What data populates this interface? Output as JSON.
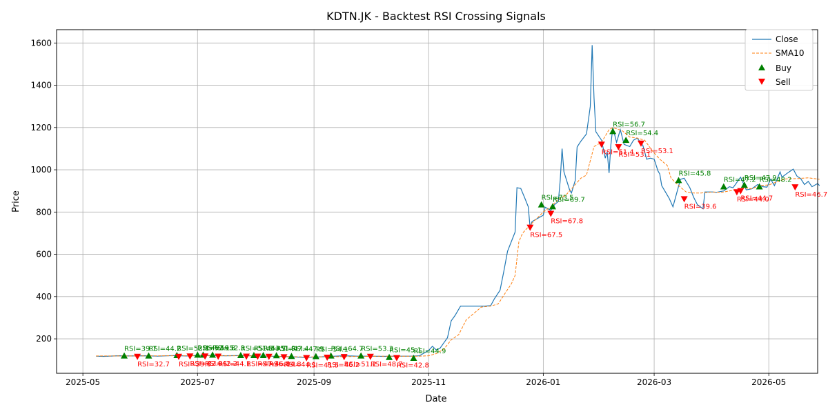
{
  "chart_data": {
    "type": "line",
    "title": "KDTN.JK - Backtest RSI Crossing Signals",
    "xlabel": "Date",
    "ylabel": "Price",
    "xlim": [
      "2025-04-17",
      "2026-05-27"
    ],
    "ylim": [
      37,
      1663
    ],
    "x_ticks": [
      {
        "date": "2025-05-01",
        "label": "2025-05"
      },
      {
        "date": "2025-07-01",
        "label": "2025-07"
      },
      {
        "date": "2025-09-01",
        "label": "2025-09"
      },
      {
        "date": "2025-11-01",
        "label": "2025-11"
      },
      {
        "date": "2026-01-01",
        "label": "2026-01"
      },
      {
        "date": "2026-03-01",
        "label": "2026-03"
      },
      {
        "date": "2026-05-01",
        "label": "2026-05"
      }
    ],
    "y_ticks": [
      200,
      400,
      600,
      800,
      1000,
      1200,
      1400,
      1600
    ],
    "grid": true,
    "legend_position": "top-right",
    "legend": [
      "Close",
      "SMA10",
      "Buy",
      "Sell"
    ],
    "colors": {
      "close": "#1f77b4",
      "sma": "#ff7f0e",
      "buy": "#008000",
      "sell": "#ff0000",
      "grid": "#b0b0b0"
    },
    "series": [
      {
        "name": "Close",
        "style": "solid",
        "points": [
          [
            "2025-05-08",
            118
          ],
          [
            "2025-05-12",
            117
          ],
          [
            "2025-05-20",
            120
          ],
          [
            "2025-05-26",
            119
          ],
          [
            "2025-06-03",
            120
          ],
          [
            "2025-06-10",
            118
          ],
          [
            "2025-06-18",
            121
          ],
          [
            "2025-06-25",
            119
          ],
          [
            "2025-07-02",
            122
          ],
          [
            "2025-07-09",
            121
          ],
          [
            "2025-07-16",
            120
          ],
          [
            "2025-07-23",
            121
          ],
          [
            "2025-07-30",
            120
          ],
          [
            "2025-08-06",
            118
          ],
          [
            "2025-08-13",
            117
          ],
          [
            "2025-08-20",
            115
          ],
          [
            "2025-08-27",
            112
          ],
          [
            "2025-09-03",
            114
          ],
          [
            "2025-09-10",
            117
          ],
          [
            "2025-09-17",
            120
          ],
          [
            "2025-09-24",
            118
          ],
          [
            "2025-10-01",
            118
          ],
          [
            "2025-10-08",
            117
          ],
          [
            "2025-10-15",
            118
          ],
          [
            "2025-10-22",
            118
          ],
          [
            "2025-10-27",
            120
          ],
          [
            "2025-11-01",
            145
          ],
          [
            "2025-11-03",
            165
          ],
          [
            "2025-11-05",
            148
          ],
          [
            "2025-11-07",
            155
          ],
          [
            "2025-11-09",
            180
          ],
          [
            "2025-11-11",
            205
          ],
          [
            "2025-11-13",
            285
          ],
          [
            "2025-11-15",
            310
          ],
          [
            "2025-11-18",
            355
          ],
          [
            "2025-11-25",
            355
          ],
          [
            "2025-12-01",
            355
          ],
          [
            "2025-12-04",
            357
          ],
          [
            "2025-12-06",
            390
          ],
          [
            "2025-12-09",
            430
          ],
          [
            "2025-12-11",
            520
          ],
          [
            "2025-12-13",
            615
          ],
          [
            "2025-12-17",
            705
          ],
          [
            "2025-12-18",
            915
          ],
          [
            "2025-12-20",
            912
          ],
          [
            "2025-12-22",
            870
          ],
          [
            "2025-12-24",
            825
          ],
          [
            "2025-12-25",
            725
          ],
          [
            "2025-12-26",
            755
          ],
          [
            "2025-12-29",
            770
          ],
          [
            "2026-01-01",
            785
          ],
          [
            "2026-01-02",
            823
          ],
          [
            "2026-01-05",
            808
          ],
          [
            "2026-01-07",
            835
          ],
          [
            "2026-01-09",
            850
          ],
          [
            "2026-01-10",
            950
          ],
          [
            "2026-01-11",
            1100
          ],
          [
            "2026-01-12",
            990
          ],
          [
            "2026-01-15",
            905
          ],
          [
            "2026-01-16",
            890
          ],
          [
            "2026-01-18",
            950
          ],
          [
            "2026-01-19",
            1108
          ],
          [
            "2026-01-21",
            1135
          ],
          [
            "2026-01-24",
            1170
          ],
          [
            "2026-01-26",
            1300
          ],
          [
            "2026-01-27",
            1590
          ],
          [
            "2026-01-28",
            1340
          ],
          [
            "2026-01-29",
            1180
          ],
          [
            "2026-02-01",
            1140
          ],
          [
            "2026-02-03",
            1055
          ],
          [
            "2026-02-04",
            1085
          ],
          [
            "2026-02-05",
            985
          ],
          [
            "2026-02-06",
            1120
          ],
          [
            "2026-02-07",
            1200
          ],
          [
            "2026-02-09",
            1130
          ],
          [
            "2026-02-11",
            1190
          ],
          [
            "2026-02-13",
            1120
          ],
          [
            "2026-02-16",
            1110
          ],
          [
            "2026-02-18",
            1140
          ],
          [
            "2026-02-20",
            1150
          ],
          [
            "2026-02-23",
            1115
          ],
          [
            "2026-02-25",
            1050
          ],
          [
            "2026-02-27",
            1055
          ],
          [
            "2026-03-01",
            1050
          ],
          [
            "2026-03-03",
            995
          ],
          [
            "2026-03-04",
            980
          ],
          [
            "2026-03-05",
            925
          ],
          [
            "2026-03-09",
            865
          ],
          [
            "2026-03-11",
            825
          ],
          [
            "2026-03-15",
            955
          ],
          [
            "2026-03-17",
            960
          ],
          [
            "2026-03-20",
            915
          ],
          [
            "2026-03-22",
            870
          ],
          [
            "2026-03-24",
            835
          ],
          [
            "2026-03-27",
            815
          ],
          [
            "2026-03-28",
            895
          ],
          [
            "2026-04-01",
            895
          ],
          [
            "2026-04-03",
            893
          ],
          [
            "2026-04-07",
            900
          ],
          [
            "2026-04-10",
            920
          ],
          [
            "2026-04-12",
            915
          ],
          [
            "2026-04-16",
            965
          ],
          [
            "2026-04-19",
            905
          ],
          [
            "2026-04-22",
            910
          ],
          [
            "2026-04-25",
            930
          ],
          [
            "2026-04-28",
            920
          ],
          [
            "2026-04-30",
            918
          ],
          [
            "2026-05-02",
            955
          ],
          [
            "2026-05-04",
            925
          ],
          [
            "2026-05-07",
            990
          ],
          [
            "2026-05-08",
            965
          ],
          [
            "2026-05-11",
            985
          ],
          [
            "2026-05-14",
            1003
          ],
          [
            "2026-05-16",
            970
          ],
          [
            "2026-05-18",
            958
          ],
          [
            "2026-05-20",
            930
          ],
          [
            "2026-05-22",
            945
          ],
          [
            "2026-05-24",
            920
          ],
          [
            "2026-05-27",
            935
          ],
          [
            "2026-05-28",
            925
          ]
        ]
      },
      {
        "name": "SMA10",
        "style": "dashed",
        "points": [
          [
            "2025-05-08",
            119
          ],
          [
            "2025-05-26",
            119
          ],
          [
            "2025-06-18",
            120
          ],
          [
            "2025-07-16",
            120
          ],
          [
            "2025-08-06",
            119
          ],
          [
            "2025-08-27",
            114
          ],
          [
            "2025-09-17",
            116
          ],
          [
            "2025-10-08",
            118
          ],
          [
            "2025-10-27",
            118
          ],
          [
            "2025-11-01",
            120
          ],
          [
            "2025-11-05",
            130
          ],
          [
            "2025-11-09",
            150
          ],
          [
            "2025-11-13",
            195
          ],
          [
            "2025-11-17",
            220
          ],
          [
            "2025-11-21",
            290
          ],
          [
            "2025-11-25",
            320
          ],
          [
            "2025-11-29",
            350
          ],
          [
            "2025-12-04",
            355
          ],
          [
            "2025-12-08",
            365
          ],
          [
            "2025-12-12",
            420
          ],
          [
            "2025-12-15",
            460
          ],
          [
            "2025-12-17",
            500
          ],
          [
            "2025-12-19",
            660
          ],
          [
            "2025-12-21",
            700
          ],
          [
            "2025-12-24",
            730
          ],
          [
            "2025-12-28",
            765
          ],
          [
            "2026-01-01",
            800
          ],
          [
            "2026-01-05",
            825
          ],
          [
            "2026-01-09",
            860
          ],
          [
            "2026-01-13",
            880
          ],
          [
            "2026-01-17",
            920
          ],
          [
            "2026-01-21",
            960
          ],
          [
            "2026-01-24",
            975
          ],
          [
            "2026-01-28",
            1110
          ],
          [
            "2026-02-01",
            1130
          ],
          [
            "2026-02-05",
            1190
          ],
          [
            "2026-02-07",
            1200
          ],
          [
            "2026-02-12",
            1185
          ],
          [
            "2026-02-16",
            1155
          ],
          [
            "2026-02-20",
            1150
          ],
          [
            "2026-02-24",
            1140
          ],
          [
            "2026-02-28",
            1090
          ],
          [
            "2026-03-04",
            1050
          ],
          [
            "2026-03-08",
            1020
          ],
          [
            "2026-03-10",
            960
          ],
          [
            "2026-03-14",
            925
          ],
          [
            "2026-03-18",
            895
          ],
          [
            "2026-03-22",
            890
          ],
          [
            "2026-03-26",
            890
          ],
          [
            "2026-04-01",
            895
          ],
          [
            "2026-04-06",
            893
          ],
          [
            "2026-04-10",
            900
          ],
          [
            "2026-04-14",
            905
          ],
          [
            "2026-04-18",
            915
          ],
          [
            "2026-04-22",
            910
          ],
          [
            "2026-04-26",
            925
          ],
          [
            "2026-05-01",
            928
          ],
          [
            "2026-05-06",
            945
          ],
          [
            "2026-05-10",
            957
          ],
          [
            "2026-05-16",
            958
          ],
          [
            "2026-05-22",
            962
          ],
          [
            "2026-05-28",
            955
          ]
        ]
      }
    ],
    "buy_signals": [
      {
        "date": "2025-05-23",
        "price": 120,
        "label": "RSI=39.7"
      },
      {
        "date": "2025-06-05",
        "price": 120,
        "label": "RSI=44.2"
      },
      {
        "date": "2025-06-20",
        "price": 122,
        "label": "RSI=52.1"
      },
      {
        "date": "2025-07-01",
        "price": 124,
        "label": "RSI=52.1"
      },
      {
        "date": "2025-07-04",
        "price": 124,
        "label": "RSI=59.8"
      },
      {
        "date": "2025-07-09",
        "price": 124,
        "label": "RSI=52.3"
      },
      {
        "date": "2025-07-24",
        "price": 122,
        "label": "RSI=51.8"
      },
      {
        "date": "2025-07-31",
        "price": 122,
        "label": "RSI=53.7"
      },
      {
        "date": "2025-08-05",
        "price": 122,
        "label": "RSI=51.9"
      },
      {
        "date": "2025-08-12",
        "price": 121,
        "label": "RSI=47.4"
      },
      {
        "date": "2025-08-20",
        "price": 118,
        "label": "RSI=47.9"
      },
      {
        "date": "2025-09-02",
        "price": 117,
        "label": "RSI=54.1"
      },
      {
        "date": "2025-09-10",
        "price": 120,
        "label": "RSI=64.7"
      },
      {
        "date": "2025-09-26",
        "price": 120,
        "label": "RSI=53.3"
      },
      {
        "date": "2025-10-11",
        "price": 113,
        "label": "RSI=45.1"
      },
      {
        "date": "2025-10-24",
        "price": 109,
        "label": "RSI=44.9"
      },
      {
        "date": "2025-12-31",
        "price": 835,
        "label": "RSI=73.5"
      },
      {
        "date": "2026-01-06",
        "price": 826,
        "label": "RSI=69.7"
      },
      {
        "date": "2026-02-07",
        "price": 1182,
        "label": "RSI=56.7"
      },
      {
        "date": "2026-02-14",
        "price": 1140,
        "label": "RSI=54.4"
      },
      {
        "date": "2026-03-14",
        "price": 950,
        "label": "RSI=45.8"
      },
      {
        "date": "2026-04-07",
        "price": 920,
        "label": "RSI=47.2"
      },
      {
        "date": "2026-04-18",
        "price": 928,
        "label": "RSI=47.9"
      },
      {
        "date": "2026-04-26",
        "price": 920,
        "label": "RSI=48.2"
      }
    ],
    "sell_signals": [
      {
        "date": "2025-05-30",
        "price": 116,
        "label": "RSI=32.7"
      },
      {
        "date": "2025-06-21",
        "price": 116,
        "label": "RSI=39.6"
      },
      {
        "date": "2025-06-27",
        "price": 118,
        "label": "RSI=42.0"
      },
      {
        "date": "2025-07-05",
        "price": 118,
        "label": "RSI=42.2"
      },
      {
        "date": "2025-07-12",
        "price": 117,
        "label": "RSI=44.1"
      },
      {
        "date": "2025-07-27",
        "price": 117,
        "label": "RSI=47.3"
      },
      {
        "date": "2025-08-02",
        "price": 117,
        "label": "RSI=46.8"
      },
      {
        "date": "2025-08-08",
        "price": 116,
        "label": "RSI=44.8"
      },
      {
        "date": "2025-08-16",
        "price": 114,
        "label": "RSI=44.1"
      },
      {
        "date": "2025-08-28",
        "price": 110,
        "label": "RSI=41.5"
      },
      {
        "date": "2025-09-08",
        "price": 112,
        "label": "RSI=46.2"
      },
      {
        "date": "2025-09-17",
        "price": 115,
        "label": "RSI=51.2"
      },
      {
        "date": "2025-10-01",
        "price": 116,
        "label": "RSI=48.7"
      },
      {
        "date": "2025-10-15",
        "price": 110,
        "label": "RSI=42.8"
      },
      {
        "date": "2025-12-25",
        "price": 727,
        "label": "RSI=67.5"
      },
      {
        "date": "2026-01-05",
        "price": 793,
        "label": "RSI=67.8"
      },
      {
        "date": "2026-02-01",
        "price": 1120,
        "label": "RSI=51.4"
      },
      {
        "date": "2026-02-10",
        "price": 1108,
        "label": "RSI=53.1"
      },
      {
        "date": "2026-02-22",
        "price": 1125,
        "label": "RSI=53.1"
      },
      {
        "date": "2026-03-17",
        "price": 862,
        "label": "RSI=39.6"
      },
      {
        "date": "2026-04-14",
        "price": 895,
        "label": "RSI=44.0"
      },
      {
        "date": "2026-04-16",
        "price": 900,
        "label": "RSI=44.7"
      },
      {
        "date": "2026-05-15",
        "price": 918,
        "label": "RSI=46.7"
      }
    ]
  }
}
